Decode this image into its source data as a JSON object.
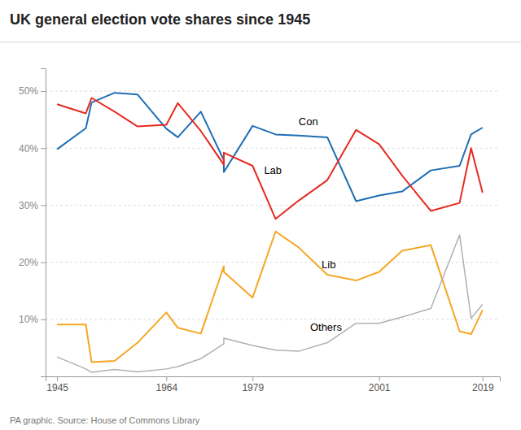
{
  "chart_data": {
    "type": "line",
    "title": "UK general election vote shares since 1945",
    "caption": "PA graphic. Source: House of Commons Library",
    "x": [
      1945,
      1950,
      1951,
      1955,
      1959,
      1964,
      1966,
      1970,
      1974,
      1974,
      1979,
      1983,
      1987,
      1992,
      1997,
      2001,
      2005,
      2010,
      2015,
      2017,
      2019
    ],
    "series": [
      {
        "color": "#1f6eb5",
        "values": [
          39.8,
          43.5,
          48.0,
          49.7,
          49.4,
          43.4,
          41.9,
          46.4,
          37.9,
          35.8,
          43.9,
          42.4,
          42.2,
          41.9,
          30.7,
          31.7,
          32.4,
          36.1,
          36.9,
          42.4,
          43.6
        ]
      },
      {
        "color": "#e52b23",
        "values": [
          47.7,
          46.1,
          48.8,
          46.4,
          43.8,
          44.1,
          47.9,
          43.0,
          37.1,
          39.2,
          36.9,
          27.6,
          30.8,
          34.4,
          43.2,
          40.7,
          35.2,
          29.0,
          30.4,
          40.0,
          32.2
        ]
      },
      {
        "color": "#f5a623",
        "values": [
          9.1,
          9.1,
          2.5,
          2.7,
          5.9,
          11.2,
          8.5,
          7.5,
          19.3,
          18.3,
          13.8,
          25.4,
          22.6,
          17.8,
          16.8,
          18.3,
          22.0,
          23.0,
          7.9,
          7.4,
          11.6
        ]
      },
      {
        "color": "#b0b0b0",
        "values": [
          3.4,
          1.3,
          0.7,
          1.2,
          0.8,
          1.3,
          1.7,
          3.1,
          5.7,
          6.7,
          5.4,
          4.6,
          4.4,
          5.9,
          9.3,
          9.3,
          10.4,
          11.9,
          24.8,
          10.2,
          12.6
        ]
      }
    ],
    "annotations": [
      {
        "text": "Con",
        "x": 1987,
        "y": 44.5
      },
      {
        "text": "Lab",
        "x": 1981,
        "y": 36.0
      },
      {
        "text": "Lib",
        "x": 1991,
        "y": 19.5
      },
      {
        "text": "Others",
        "x": 1989,
        "y": 8.5
      }
    ],
    "xlim": [
      1943,
      2022
    ],
    "xticks": [
      1945,
      1964,
      1979,
      2001,
      2019
    ],
    "ylim": [
      0,
      54
    ],
    "yticks": [
      {
        "value": 10,
        "label": "10%"
      },
      {
        "value": 20,
        "label": "20%"
      },
      {
        "value": 30,
        "label": "30%"
      },
      {
        "value": 40,
        "label": "40%"
      },
      {
        "value": 50,
        "label": "50%"
      }
    ],
    "grid": true
  }
}
